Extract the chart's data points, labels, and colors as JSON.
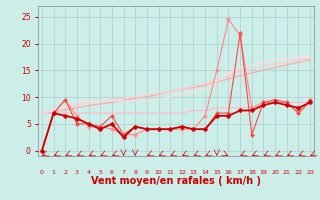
{
  "background_color": "#cceee8",
  "grid_color": "#aacccc",
  "xlabel": "Vent moyen/en rafales ( km/h )",
  "xlabel_color": "#cc0000",
  "xlabel_fontsize": 7,
  "xticks": [
    0,
    1,
    2,
    3,
    4,
    5,
    6,
    7,
    8,
    9,
    10,
    11,
    12,
    13,
    14,
    15,
    16,
    17,
    18,
    19,
    20,
    21,
    22,
    23
  ],
  "yticks": [
    0,
    5,
    10,
    15,
    20,
    25
  ],
  "ylim": [
    -1,
    27
  ],
  "xlim": [
    -0.3,
    23.3
  ],
  "tick_color": "#cc0000",
  "lines": [
    {
      "x": [
        0,
        1,
        2,
        3,
        4,
        5,
        6,
        7,
        8,
        9,
        10,
        11,
        12,
        13,
        14,
        15,
        16,
        17,
        18,
        19,
        20,
        21,
        22,
        23
      ],
      "y": [
        7,
        7,
        7,
        7,
        7,
        7,
        7,
        7,
        7,
        7,
        7,
        7,
        7,
        7.5,
        7.5,
        8,
        8,
        8,
        8,
        8.5,
        9,
        9,
        9,
        9
      ],
      "color": "#ffbbcc",
      "linewidth": 0.9,
      "marker": null,
      "zorder": 2
    },
    {
      "x": [
        0,
        1,
        2,
        3,
        4,
        5,
        6,
        7,
        8,
        9,
        10,
        11,
        12,
        13,
        14,
        15,
        16,
        17,
        18,
        19,
        20,
        21,
        22,
        23
      ],
      "y": [
        7,
        7.3,
        7.6,
        8,
        8.4,
        8.7,
        9,
        9.4,
        9.8,
        10.1,
        10.5,
        11,
        11.4,
        11.8,
        12.2,
        12.8,
        13.4,
        14,
        14.5,
        15,
        15.5,
        16,
        16.5,
        17
      ],
      "color": "#ffaaaa",
      "linewidth": 0.9,
      "marker": null,
      "zorder": 2
    },
    {
      "x": [
        0,
        1,
        2,
        3,
        4,
        5,
        6,
        7,
        8,
        9,
        10,
        11,
        12,
        13,
        14,
        15,
        16,
        17,
        18,
        19,
        20,
        21,
        22,
        23
      ],
      "y": [
        7,
        7.5,
        8,
        8.5,
        9,
        9.2,
        9.5,
        9.8,
        10,
        10.3,
        10.7,
        11,
        11.5,
        12,
        12.5,
        13.3,
        14,
        14.8,
        15.2,
        15.8,
        16.2,
        16.5,
        17,
        17.3
      ],
      "color": "#ffcccc",
      "linewidth": 0.9,
      "marker": null,
      "zorder": 2
    },
    {
      "x": [
        0,
        1,
        2,
        3,
        4,
        5,
        6,
        7,
        8,
        9,
        10,
        11,
        12,
        13,
        14,
        15,
        16,
        17,
        18,
        19,
        20,
        21,
        22,
        23
      ],
      "y": [
        7,
        7.5,
        8.2,
        9,
        9.3,
        9.3,
        9.3,
        9.3,
        9.3,
        9.3,
        9.6,
        10,
        10.5,
        11,
        11.5,
        13,
        14.5,
        15.5,
        16,
        16.5,
        17,
        17,
        17.5,
        17.5
      ],
      "color": "#ffdddd",
      "linewidth": 0.9,
      "marker": null,
      "zorder": 2
    },
    {
      "x": [
        0,
        1,
        2,
        3,
        4,
        5,
        6,
        7,
        8,
        9,
        10,
        11,
        12,
        13,
        14,
        15,
        16,
        17,
        18,
        19,
        20,
        21,
        22,
        23
      ],
      "y": [
        0,
        7,
        9.5,
        6.5,
        4.5,
        4.5,
        4,
        3,
        3,
        4,
        4,
        4,
        4,
        4,
        6.5,
        15,
        24.5,
        21.5,
        8,
        9,
        9,
        9,
        7,
        9
      ],
      "color": "#ff8888",
      "linewidth": 0.8,
      "marker": "D",
      "markersize": 2,
      "zorder": 3
    },
    {
      "x": [
        0,
        1,
        2,
        3,
        4,
        5,
        6,
        7,
        8,
        9,
        10,
        11,
        12,
        13,
        14,
        15,
        16,
        17,
        18,
        19,
        20,
        21,
        22,
        23
      ],
      "y": [
        0,
        7,
        9.5,
        5,
        5,
        4.5,
        6.5,
        3,
        4.5,
        4,
        4,
        4,
        4.5,
        4,
        4,
        7,
        7,
        22,
        3,
        9,
        9.5,
        9,
        7,
        9.5
      ],
      "color": "#ff4444",
      "linewidth": 0.8,
      "marker": "D",
      "markersize": 2,
      "zorder": 3
    },
    {
      "x": [
        0,
        1,
        2,
        3,
        4,
        5,
        6,
        7,
        8,
        9,
        10,
        11,
        12,
        13,
        14,
        15,
        16,
        17,
        18,
        19,
        20,
        21,
        22,
        23
      ],
      "y": [
        0,
        7,
        6.5,
        6,
        5,
        4,
        5,
        2.5,
        4.5,
        4,
        4,
        4,
        4.5,
        4,
        4,
        6.5,
        6.5,
        7.5,
        7.5,
        8.5,
        9,
        8.5,
        8,
        9
      ],
      "color": "#cc0000",
      "linewidth": 1.3,
      "marker": "D",
      "markersize": 2.5,
      "zorder": 4
    }
  ],
  "arrow_angles": [
    225,
    225,
    225,
    225,
    225,
    225,
    225,
    270,
    270,
    225,
    225,
    225,
    225,
    225,
    225,
    270,
    315,
    225,
    225,
    225,
    225,
    225,
    225,
    225
  ]
}
